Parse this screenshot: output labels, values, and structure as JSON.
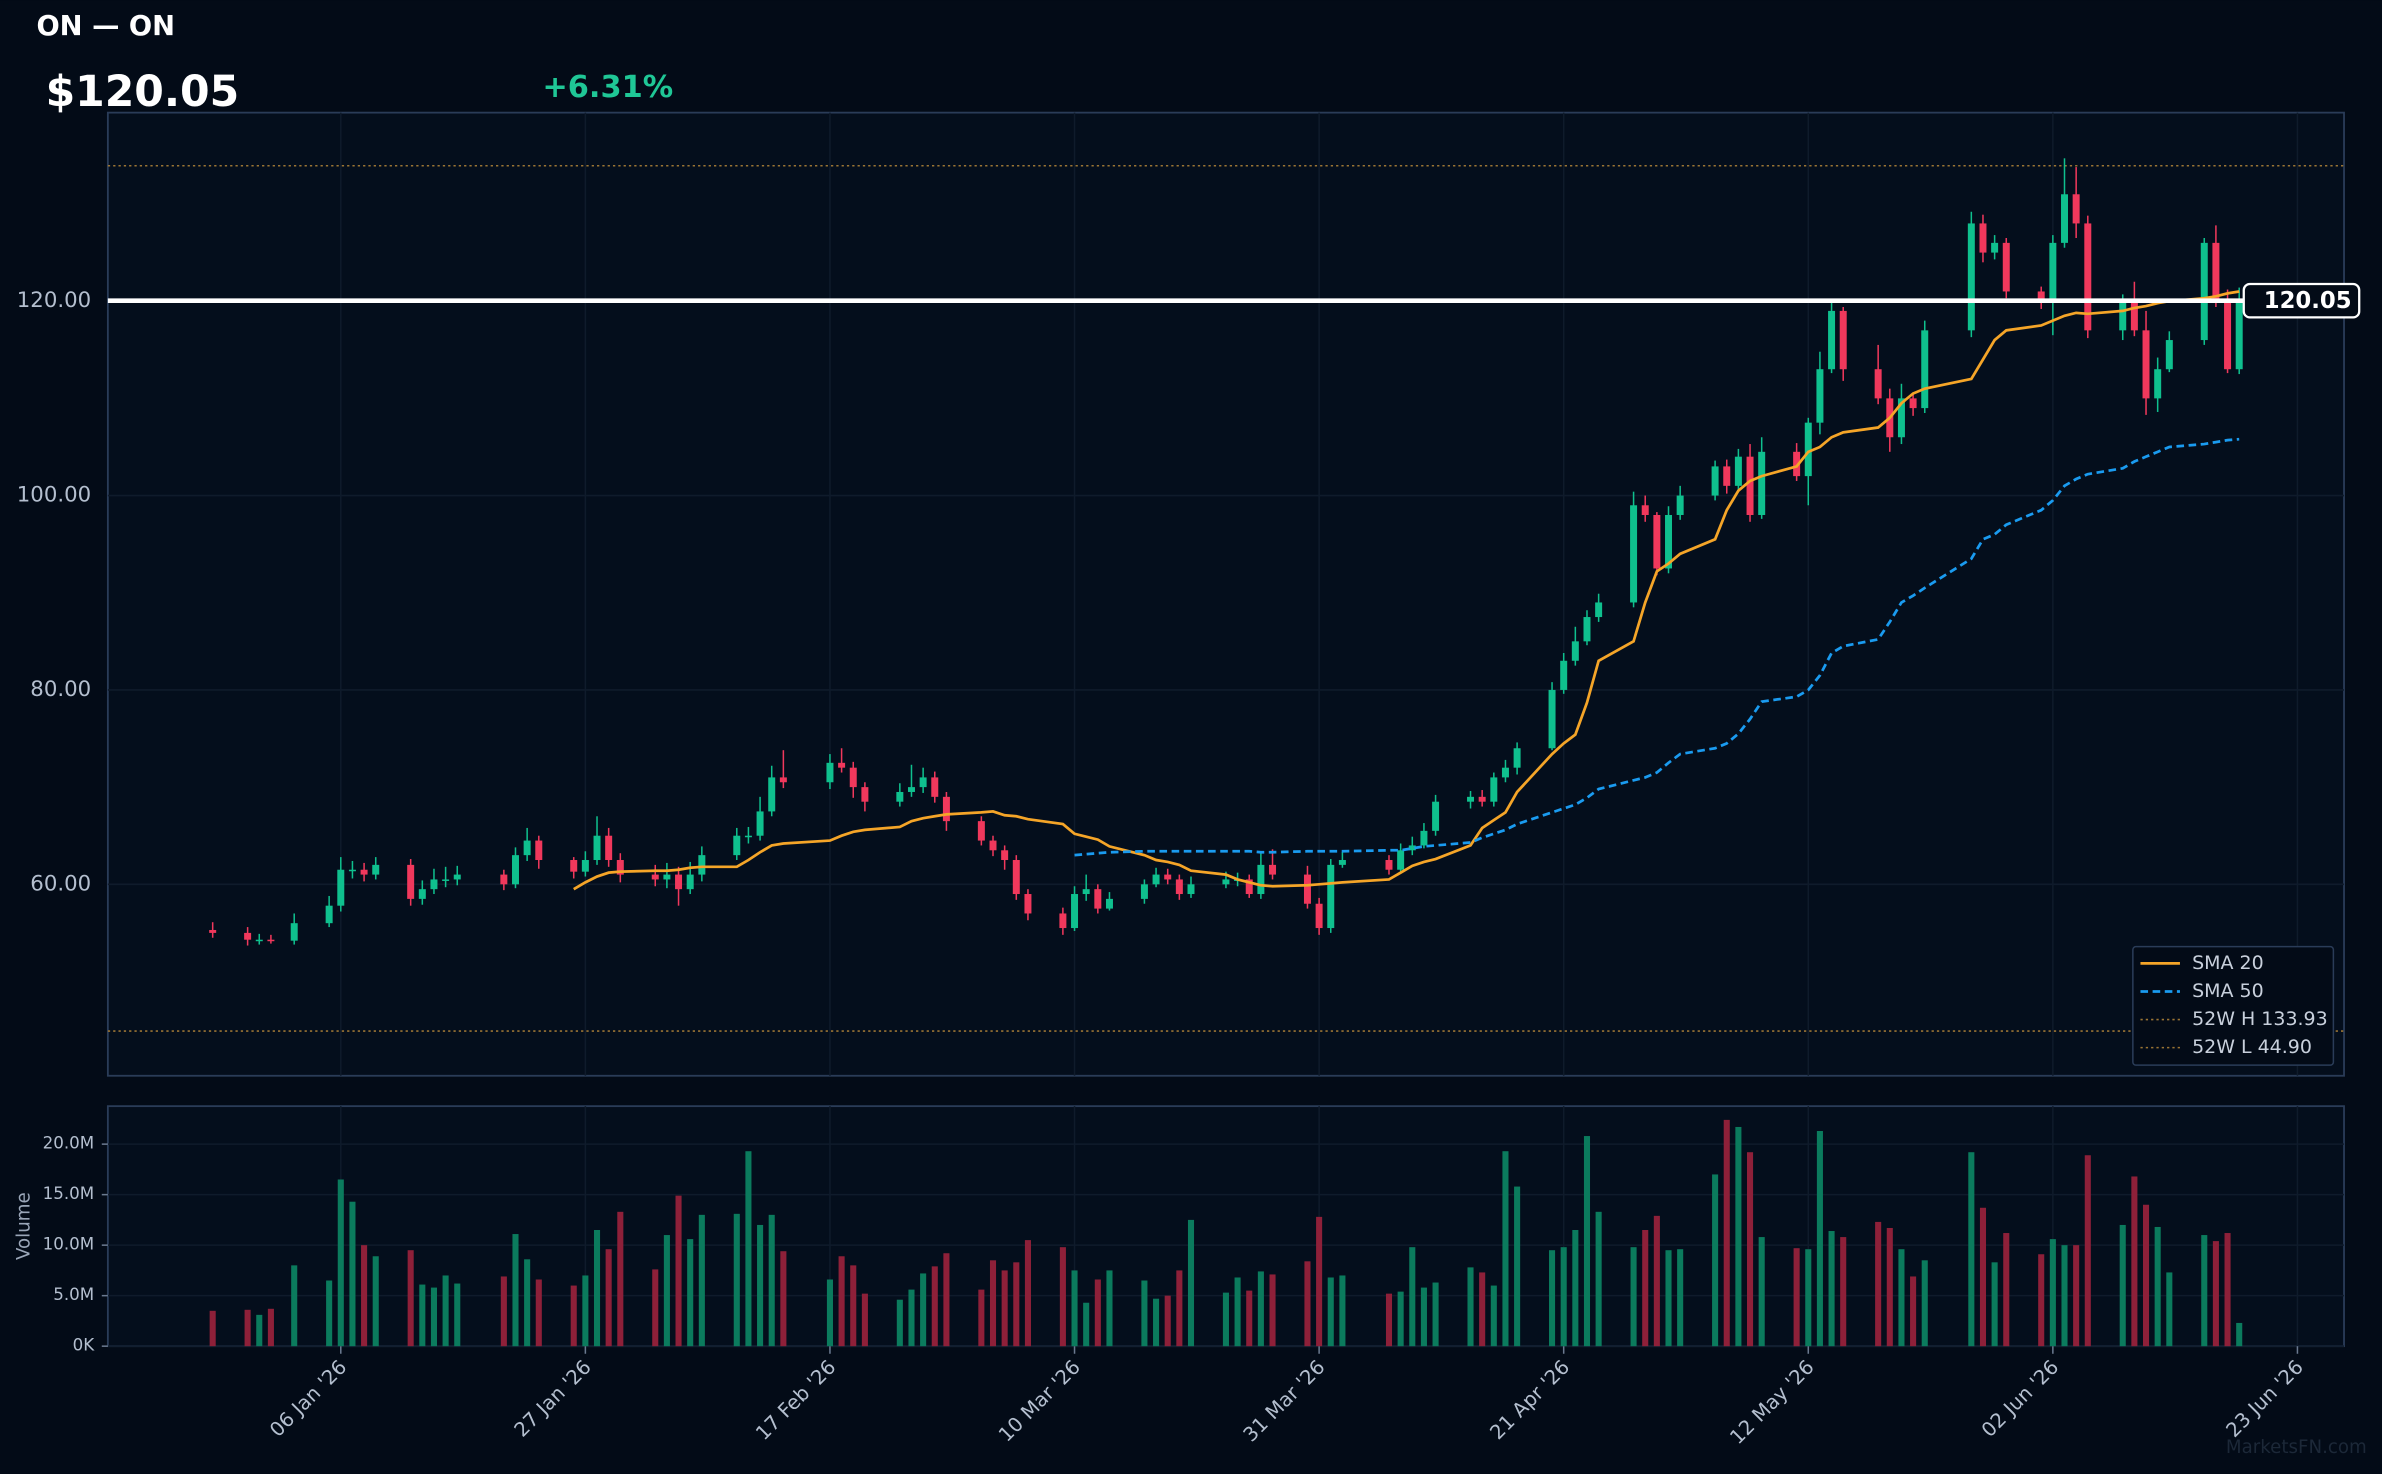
{
  "header": {
    "title": "ON — ON",
    "price": "$120.05",
    "change": "+6.31%",
    "watermark": "MarketsFN.com"
  },
  "chart_data": {
    "type": "candlestick",
    "x": [
      "2025-12-26",
      "2025-12-29",
      "2025-12-30",
      "2025-12-31",
      "2026-01-02",
      "2026-01-05",
      "2026-01-06",
      "2026-01-07",
      "2026-01-08",
      "2026-01-09",
      "2026-01-12",
      "2026-01-13",
      "2026-01-14",
      "2026-01-15",
      "2026-01-16",
      "2026-01-20",
      "2026-01-21",
      "2026-01-22",
      "2026-01-23",
      "2026-01-26",
      "2026-01-27",
      "2026-01-28",
      "2026-01-29",
      "2026-01-30",
      "2026-02-02",
      "2026-02-03",
      "2026-02-04",
      "2026-02-05",
      "2026-02-06",
      "2026-02-09",
      "2026-02-10",
      "2026-02-11",
      "2026-02-12",
      "2026-02-13",
      "2026-02-17",
      "2026-02-18",
      "2026-02-19",
      "2026-02-20",
      "2026-02-23",
      "2026-02-24",
      "2026-02-25",
      "2026-02-26",
      "2026-02-27",
      "2026-03-02",
      "2026-03-03",
      "2026-03-04",
      "2026-03-05",
      "2026-03-06",
      "2026-03-09",
      "2026-03-10",
      "2026-03-11",
      "2026-03-12",
      "2026-03-13",
      "2026-03-16",
      "2026-03-17",
      "2026-03-18",
      "2026-03-19",
      "2026-03-20",
      "2026-03-23",
      "2026-03-24",
      "2026-03-25",
      "2026-03-26",
      "2026-03-27",
      "2026-03-30",
      "2026-03-31",
      "2026-04-01",
      "2026-04-02",
      "2026-04-06",
      "2026-04-07",
      "2026-04-08",
      "2026-04-09",
      "2026-04-10",
      "2026-04-13",
      "2026-04-14",
      "2026-04-15",
      "2026-04-16",
      "2026-04-17",
      "2026-04-20",
      "2026-04-21",
      "2026-04-22",
      "2026-04-23",
      "2026-04-24",
      "2026-04-27",
      "2026-04-28",
      "2026-04-29",
      "2026-04-30",
      "2026-05-01",
      "2026-05-04",
      "2026-05-05",
      "2026-05-06",
      "2026-05-07",
      "2026-05-08",
      "2026-05-11",
      "2026-05-12",
      "2026-05-13",
      "2026-05-14",
      "2026-05-15",
      "2026-05-18",
      "2026-05-19",
      "2026-05-20",
      "2026-05-21",
      "2026-05-22",
      "2026-05-26",
      "2026-05-27",
      "2026-05-28",
      "2026-05-29",
      "2026-06-01",
      "2026-06-02",
      "2026-06-03",
      "2026-06-04",
      "2026-06-05",
      "2026-06-08",
      "2026-06-09",
      "2026-06-10",
      "2026-06-11",
      "2026-06-12",
      "2026-06-15",
      "2026-06-16",
      "2026-06-17",
      "2026-06-18"
    ],
    "open": [
      55.3,
      55,
      54.3,
      54.3,
      54.2,
      56,
      57.8,
      61.5,
      61.5,
      61,
      62,
      58.5,
      59.5,
      60.5,
      60.5,
      61,
      60,
      63,
      64.5,
      62.5,
      61.3,
      62.5,
      65,
      62.5,
      61,
      60.5,
      61,
      59.5,
      61,
      63,
      65,
      65,
      67.5,
      71,
      70.5,
      72.5,
      72,
      70,
      68.5,
      69.5,
      70,
      71,
      69,
      66.5,
      64.5,
      63.5,
      62.5,
      59,
      57,
      55.5,
      59,
      59.5,
      57.5,
      58.5,
      60,
      61,
      60.5,
      59,
      60,
      60.5,
      60.5,
      59,
      62,
      61,
      58,
      55.5,
      62,
      62.5,
      61.5,
      63.5,
      64,
      65.5,
      68.5,
      69,
      68.5,
      71,
      72,
      74,
      80,
      83,
      85,
      87.5,
      89,
      99,
      98,
      92.5,
      98,
      100,
      103,
      101,
      104,
      98,
      104.5,
      102,
      107.5,
      113,
      119,
      113,
      110,
      106,
      110,
      109,
      117,
      128,
      125,
      126,
      121,
      120,
      126,
      131,
      128,
      117,
      120,
      117,
      110,
      113,
      116,
      126,
      120,
      113
    ],
    "high": [
      56.1,
      55.6,
      54.9,
      54.8,
      57,
      58.8,
      62.8,
      62.4,
      62.2,
      62.8,
      62.6,
      60.4,
      61.6,
      61.8,
      61.9,
      61.5,
      63.8,
      65.8,
      65,
      62.8,
      63.4,
      67,
      65.8,
      63.2,
      62,
      62.2,
      61.8,
      62.3,
      63.9,
      65.8,
      65.9,
      69,
      72.2,
      73.8,
      73.4,
      74,
      72.6,
      70.5,
      70.4,
      72.3,
      72,
      71.6,
      69.5,
      67,
      65,
      64,
      63,
      59.5,
      57.6,
      59.8,
      61,
      60,
      59.2,
      60.5,
      61.7,
      61.6,
      61,
      60.8,
      61.3,
      61.2,
      61,
      63.2,
      63.6,
      61.9,
      58.6,
      62.6,
      63.3,
      63,
      64.2,
      64.9,
      66.3,
      69.2,
      69.6,
      69.7,
      71.5,
      72.8,
      74.6,
      80.8,
      83.8,
      86.5,
      88.2,
      89.9,
      100.4,
      100,
      98.3,
      98.9,
      101,
      103.6,
      103.7,
      104.8,
      105.3,
      106,
      105.4,
      108,
      114.8,
      120,
      119.4,
      115.5,
      111,
      111.5,
      110.6,
      118,
      129.2,
      128.9,
      126.8,
      126.5,
      121.5,
      126.8,
      134.7,
      133.8,
      128.8,
      120.7,
      122,
      119,
      114.2,
      116.9,
      126.5,
      127.8,
      121.2,
      121.4
    ],
    "low": [
      54.5,
      53.7,
      53.8,
      53.9,
      53.8,
      55.6,
      57.2,
      60.6,
      60.3,
      60.5,
      57.8,
      57.9,
      59,
      59.7,
      59.9,
      59.4,
      59.6,
      62.4,
      61.6,
      60.6,
      60.8,
      62,
      61.8,
      60.2,
      59.8,
      59.6,
      57.8,
      59,
      60.3,
      62.5,
      64.2,
      64.5,
      67,
      69.9,
      69.8,
      71.5,
      68.9,
      67.5,
      68,
      69,
      69.4,
      68.4,
      65.5,
      64,
      62.9,
      61.5,
      58.4,
      56.3,
      54.8,
      55.2,
      58.3,
      57,
      57.3,
      58,
      59.7,
      60,
      58.4,
      58.6,
      59.6,
      59.8,
      58.6,
      58.5,
      60.5,
      57.5,
      54.8,
      55,
      61.7,
      61,
      61.2,
      63,
      63.7,
      65,
      67.8,
      68,
      68,
      70.5,
      71.3,
      73.8,
      79.6,
      82.5,
      84.6,
      87,
      88.5,
      97.3,
      91.8,
      92,
      97.5,
      99.5,
      100.2,
      100.5,
      97.3,
      97.6,
      101.5,
      99,
      106.3,
      112.6,
      111.8,
      109.4,
      104.5,
      105.3,
      108.2,
      108.5,
      116.3,
      124,
      124.3,
      120.3,
      119.2,
      116.5,
      125.5,
      126.5,
      116.2,
      116,
      116.4,
      108.3,
      108.6,
      112.7,
      115.5,
      119.4,
      112.6,
      112.5
    ],
    "close": [
      55,
      54.3,
      54.3,
      54.2,
      56,
      57.8,
      61.5,
      61.5,
      61,
      62,
      58.5,
      59.5,
      60.5,
      60.5,
      61,
      60,
      63,
      64.5,
      62.5,
      61.3,
      62.5,
      65,
      62.5,
      61,
      60.5,
      61,
      59.5,
      61,
      63,
      65,
      65,
      67.5,
      71,
      70.5,
      72.5,
      72,
      70,
      68.5,
      69.5,
      70,
      71,
      69,
      66.5,
      64.5,
      63.5,
      62.5,
      59,
      57,
      55.5,
      59,
      59.5,
      57.5,
      58.5,
      60,
      61,
      60.5,
      59,
      60,
      60.5,
      60.5,
      59,
      62,
      61,
      58,
      55.5,
      62,
      62.5,
      61.5,
      63.5,
      64,
      65.5,
      68.5,
      69,
      68.5,
      71,
      72,
      74,
      80,
      83,
      85,
      87.5,
      89,
      99,
      98,
      92.5,
      98,
      100,
      103,
      101,
      104,
      98,
      104.5,
      102,
      107.5,
      113,
      119,
      113,
      110,
      106,
      110,
      109,
      117,
      128,
      125,
      126,
      121,
      120,
      126,
      131,
      128,
      117,
      120,
      117,
      110,
      113,
      116,
      126,
      120,
      113,
      120.05
    ],
    "up_color": "#0fc08e",
    "down_color": "#f0385c",
    "volume": {
      "ylabel": "Volume",
      "up_color": "#0b7b5d",
      "down_color": "#8e2039",
      "values": [
        3500000,
        3600000,
        3100000,
        3700000,
        8000000,
        6500000,
        16500000,
        14300000,
        10000000,
        8900000,
        9500000,
        6100000,
        5800000,
        7000000,
        6200000,
        6900000,
        11100000,
        8600000,
        6600000,
        6000000,
        7000000,
        11500000,
        9600000,
        13300000,
        7600000,
        11000000,
        14900000,
        10600000,
        13000000,
        13100000,
        19300000,
        12000000,
        13000000,
        9400000,
        6600000,
        8900000,
        8000000,
        5200000,
        4600000,
        5600000,
        7200000,
        7900000,
        9200000,
        5600000,
        8500000,
        7500000,
        8300000,
        10500000,
        9800000,
        7500000,
        4300000,
        6600000,
        7500000,
        6500000,
        4700000,
        5000000,
        7500000,
        12500000,
        5300000,
        6800000,
        5500000,
        7400000,
        7100000,
        8400000,
        12800000,
        6800000,
        7000000,
        5200000,
        5400000,
        9800000,
        5800000,
        6300000,
        7800000,
        7300000,
        6000000,
        19300000,
        15800000,
        9500000,
        9800000,
        11500000,
        20800000,
        13300000,
        9800000,
        11500000,
        12900000,
        9500000,
        9600000,
        17000000,
        22400000,
        21700000,
        19200000,
        10800000,
        9700000,
        9600000,
        21300000,
        11400000,
        10800000,
        12300000,
        11700000,
        9600000,
        6900000,
        8500000,
        19200000,
        13700000,
        8300000,
        11200000,
        9100000,
        10600000,
        10000000,
        10000000,
        18900000,
        12000000,
        16800000,
        14000000,
        11800000,
        7300000,
        11000000,
        10400000,
        11200000,
        2300000
      ],
      "ylim": [
        0,
        23760000
      ],
      "yticks": [
        {
          "value": 0,
          "label": "0K"
        },
        {
          "value": 5000000,
          "label": "5.0M"
        },
        {
          "value": 10000000,
          "label": "10.0M"
        },
        {
          "value": 15000000,
          "label": "15.0M"
        },
        {
          "value": 20000000,
          "label": "20.0M"
        }
      ]
    },
    "series": [
      {
        "name": "SMA 20",
        "color": "#f5a528",
        "line_style": "solid",
        "values": [
          null,
          null,
          null,
          null,
          null,
          null,
          null,
          null,
          null,
          null,
          null,
          null,
          null,
          null,
          null,
          null,
          null,
          null,
          null,
          59.5,
          60.2,
          60.8,
          61.2,
          61.3,
          61.4,
          61.4,
          61.5,
          61.7,
          61.8,
          61.8,
          62.5,
          63.3,
          64.0,
          64.2,
          64.5,
          65.0,
          65.4,
          65.6,
          65.9,
          66.5,
          66.8,
          67.0,
          67.2,
          67.4,
          67.5,
          67.1,
          67.0,
          66.7,
          66.2,
          65.2,
          64.9,
          64.6,
          63.9,
          63.0,
          62.5,
          62.3,
          62.0,
          61.4,
          61.0,
          60.5,
          60.2,
          59.9,
          59.8,
          59.9,
          60.0,
          60.1,
          60.2,
          60.5,
          61.2,
          61.9,
          62.3,
          62.6,
          64.0,
          65.8,
          66.6,
          67.4,
          69.5,
          73.4,
          74.5,
          75.4,
          78.7,
          83.0,
          85.0,
          89.0,
          92.2,
          93.0,
          94.0,
          95.5,
          98.5,
          100.5,
          101.5,
          102.0,
          103.0,
          104.5,
          105.0,
          106.0,
          106.5,
          107.0,
          108.0,
          109.5,
          110.5,
          111.0,
          112.0,
          114.0,
          116.0,
          117.0,
          117.5,
          118.0,
          118.5,
          118.8,
          118.7,
          119.0,
          119.3,
          119.5,
          119.8,
          120.0,
          120.3,
          120.5,
          120.8,
          121.0
        ]
      },
      {
        "name": "SMA 50",
        "color": "#1a9bf0",
        "line_style": "dashed",
        "values": [
          null,
          null,
          null,
          null,
          null,
          null,
          null,
          null,
          null,
          null,
          null,
          null,
          null,
          null,
          null,
          null,
          null,
          null,
          null,
          null,
          null,
          null,
          null,
          null,
          null,
          null,
          null,
          null,
          null,
          null,
          null,
          null,
          null,
          null,
          null,
          null,
          null,
          null,
          null,
          null,
          null,
          null,
          null,
          null,
          null,
          null,
          null,
          null,
          null,
          63.0,
          63.1,
          63.2,
          63.3,
          63.4,
          63.4,
          63.4,
          63.4,
          63.4,
          63.4,
          63.4,
          63.4,
          63.3,
          63.3,
          63.4,
          63.4,
          63.4,
          63.4,
          63.5,
          63.5,
          63.7,
          63.9,
          64.0,
          64.3,
          64.8,
          65.2,
          65.6,
          66.2,
          67.4,
          67.8,
          68.2,
          68.9,
          69.8,
          70.7,
          71.0,
          71.5,
          72.5,
          73.4,
          74.0,
          74.5,
          75.5,
          77.0,
          78.8,
          79.3,
          80.0,
          81.5,
          83.8,
          84.5,
          85.2,
          87.0,
          89.0,
          89.7,
          90.5,
          93.5,
          95.5,
          96.0,
          97.0,
          98.5,
          99.5,
          101.0,
          101.7,
          102.2,
          102.8,
          103.5,
          104.0,
          104.5,
          105.0,
          105.3,
          105.5,
          105.7,
          105.8
        ]
      }
    ],
    "reference_lines": [
      {
        "name": "52W H 133.93",
        "value": 133.93,
        "color": "#9a7434"
      },
      {
        "name": "52W L 44.90",
        "value": 44.9,
        "color": "#9a7434"
      }
    ],
    "current_price": 120.05,
    "ylim": [
      40.3,
      139.4
    ],
    "yticks": [
      {
        "value": 60,
        "label": "60.00"
      },
      {
        "value": 80,
        "label": "80.00"
      },
      {
        "value": 100,
        "label": "100.00"
      },
      {
        "value": 120,
        "label": "120.00"
      }
    ],
    "xlim": [
      "2025-12-17",
      "2026-06-27"
    ],
    "xticks": [
      {
        "value": "2026-01-06",
        "label": "06 Jan '26"
      },
      {
        "value": "2026-01-27",
        "label": "27 Jan '26"
      },
      {
        "value": "2026-02-17",
        "label": "17 Feb '26"
      },
      {
        "value": "2026-03-10",
        "label": "10 Mar '26"
      },
      {
        "value": "2026-03-31",
        "label": "31 Mar '26"
      },
      {
        "value": "2026-04-21",
        "label": "21 Apr '26"
      },
      {
        "value": "2026-05-12",
        "label": "12 May '26"
      },
      {
        "value": "2026-06-02",
        "label": "02 Jun '26"
      },
      {
        "value": "2026-06-23",
        "label": "23 Jun '26"
      }
    ],
    "grid": true,
    "legend": "lower right"
  }
}
